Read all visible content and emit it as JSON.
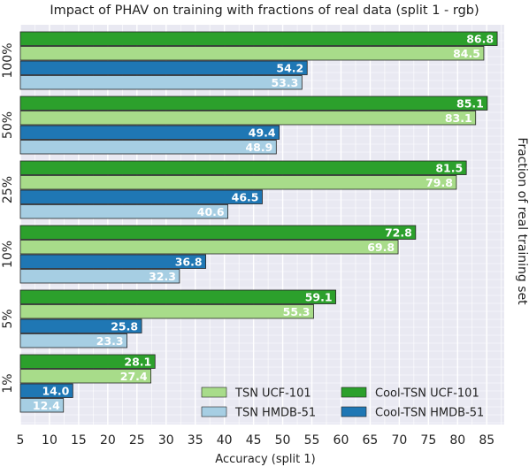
{
  "chart_data": {
    "type": "bar",
    "orientation": "horizontal",
    "title": "Impact of PHAV on training with fractions of real data (split 1 - rgb)",
    "xlabel": "Accuracy (split 1)",
    "ylabel": "Fraction of real training set",
    "xlim": [
      5,
      88
    ],
    "xticks": [
      5,
      10,
      15,
      20,
      25,
      30,
      35,
      40,
      45,
      50,
      55,
      60,
      65,
      70,
      75,
      80,
      85
    ],
    "grid": true,
    "legend_position": "bottom-right",
    "categories": [
      "100%",
      "50%",
      "25%",
      "10%",
      "5%",
      "1%"
    ],
    "series": [
      {
        "name": "Cool-TSN UCF-101",
        "color": "#2ca02c",
        "label_color": "#ffffff",
        "values": [
          86.8,
          85.1,
          81.5,
          72.8,
          59.1,
          28.1
        ],
        "labels": [
          "86.8",
          "85.1",
          "81.5",
          "72.8",
          "59.1",
          "28.1"
        ]
      },
      {
        "name": "TSN UCF-101",
        "color": "#a8dc8a",
        "label_color": "#ffffff",
        "values": [
          84.5,
          83.1,
          79.8,
          69.8,
          55.3,
          27.4
        ],
        "labels": [
          "84.5",
          "83.1",
          "79.8",
          "69.8",
          "55.3",
          "27.4"
        ]
      },
      {
        "name": "Cool-TSN HMDB-51",
        "color": "#1f77b4",
        "label_color": "#ffffff",
        "values": [
          54.2,
          49.4,
          46.5,
          36.8,
          25.8,
          14.0
        ],
        "labels": [
          "54.2",
          "49.4",
          "46.5",
          "36.8",
          "25.8",
          "14.0"
        ]
      },
      {
        "name": "TSN HMDB-51",
        "color": "#a6cee3",
        "label_color": "#ffffff",
        "values": [
          53.3,
          48.9,
          40.6,
          32.3,
          23.3,
          12.4
        ],
        "labels": [
          "53.3",
          "48.9",
          "40.6",
          "32.3",
          "23.3",
          "12.4"
        ]
      }
    ],
    "legend": [
      {
        "name": "TSN UCF-101",
        "color": "#a8dc8a"
      },
      {
        "name": "Cool-TSN UCF-101",
        "color": "#2ca02c"
      },
      {
        "name": "TSN HMDB-51",
        "color": "#a6cee3"
      },
      {
        "name": "Cool-TSN HMDB-51",
        "color": "#1f77b4"
      }
    ]
  }
}
